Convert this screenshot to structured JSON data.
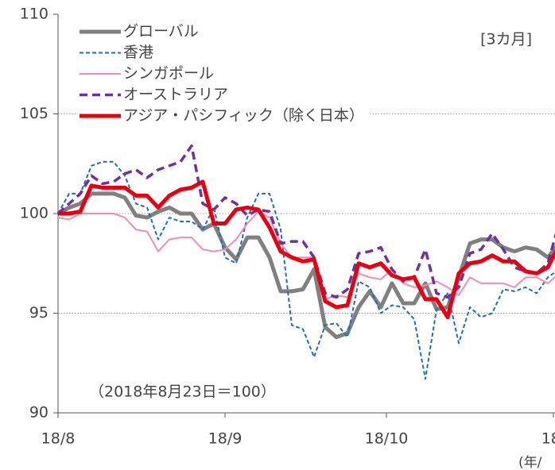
{
  "chart_data": {
    "type": "line",
    "annotations": [
      "[3カ月]",
      "（2018年8月23日＝100）",
      "(年/"
    ],
    "x": [
      0,
      2,
      4,
      6,
      8,
      10,
      12,
      14,
      16,
      18,
      20,
      22,
      24,
      26,
      28,
      30,
      32,
      34,
      36,
      38,
      40,
      42,
      44,
      46,
      48,
      50,
      52,
      54,
      56,
      58,
      60,
      62,
      64,
      66,
      68,
      70,
      72,
      74,
      76,
      78,
      80,
      82,
      84,
      86,
      88,
      90
    ],
    "xlim": [
      0,
      90
    ],
    "xticks": [
      {
        "value": 0,
        "label": "18/8"
      },
      {
        "value": 30,
        "label": "18/9"
      },
      {
        "value": 59,
        "label": "18/10"
      },
      {
        "value": 89,
        "label": "18/"
      }
    ],
    "ylim": [
      90,
      110
    ],
    "yticks": [
      90,
      95,
      100,
      105,
      110
    ],
    "grid": true,
    "legend": "top-left",
    "series": [
      {
        "name": "グローバル",
        "color": "#808080",
        "style": "solid",
        "weight": "heavy",
        "values": [
          100,
          100.3,
          100.5,
          101,
          101,
          101,
          100.8,
          99.9,
          99.8,
          100.1,
          100.3,
          100,
          100,
          99.2,
          99.5,
          98.3,
          97.7,
          98.8,
          98.8,
          97.8,
          96.1,
          96.1,
          96.2,
          97.2,
          94.3,
          93.8,
          94,
          95.3,
          96.1,
          95.3,
          96.5,
          95.5,
          95.5,
          96.5,
          95.2,
          95.3,
          96.8,
          98.5,
          98.7,
          98.7,
          98.3,
          98.1,
          98.3,
          98.2,
          97.8,
          98.5
        ]
      },
      {
        "name": "香港",
        "color": "#1f6fb8",
        "style": "dashed",
        "weight": "light",
        "values": [
          100,
          101,
          101,
          102.4,
          102.6,
          102.6,
          101.9,
          100.5,
          100.3,
          98.7,
          99.8,
          99.6,
          99.6,
          99.2,
          100.3,
          97.8,
          97.5,
          99.8,
          101,
          101,
          99.2,
          94.4,
          94.2,
          92.8,
          94.4,
          94.5,
          93.8,
          96.6,
          96.3,
          95,
          95.4,
          95.3,
          94.7,
          91.7,
          95.2,
          96,
          93.5,
          95.3,
          94.8,
          95,
          96.2,
          96.1,
          96.3,
          96,
          96.8,
          97.2
        ]
      },
      {
        "name": "シンガポール",
        "color": "#f08cb8",
        "style": "solid",
        "weight": "light",
        "values": [
          99.8,
          99.7,
          100,
          100,
          100,
          100,
          99.8,
          99.2,
          99.1,
          98.1,
          98.7,
          98.8,
          98.8,
          98.2,
          98.1,
          98.2,
          98.7,
          99.5,
          100.1,
          99.8,
          98.5,
          97.8,
          97.8,
          97.8,
          95.7,
          95.9,
          95.8,
          97,
          96.8,
          96.7,
          97.2,
          96.5,
          96.3,
          96.4,
          96.6,
          96.3,
          95.9,
          96.8,
          96.5,
          96.5,
          96.5,
          96.3,
          96.8,
          96.8,
          96.5,
          97
        ]
      },
      {
        "name": "オーストラリア",
        "color": "#7030a0",
        "style": "dashed",
        "weight": "heavy",
        "values": [
          100,
          100.5,
          101,
          101.9,
          101.5,
          101.6,
          102,
          102.2,
          101.8,
          102.2,
          102.4,
          102.6,
          103.4,
          100.5,
          100.2,
          100.8,
          100.5,
          99.9,
          100.2,
          100.1,
          98.5,
          98.6,
          98.6,
          97.8,
          96,
          95.8,
          96.2,
          98,
          98.1,
          98.3,
          97.2,
          96.6,
          96.8,
          98.2,
          96,
          95.8,
          96.3,
          98,
          98.2,
          99,
          98.2,
          97.3,
          97.1,
          97,
          97.5,
          99.5
        ]
      },
      {
        "name": "アジア・パシフィック（除く日本）",
        "color": "#e60012",
        "style": "solid",
        "weight": "heavy",
        "values": [
          100,
          100,
          100.1,
          101.4,
          101.3,
          101.3,
          101.3,
          100.9,
          100.9,
          100.3,
          100.9,
          101.2,
          101.3,
          101.6,
          99.5,
          99.5,
          100.2,
          100.3,
          100.2,
          99.3,
          98.1,
          97.8,
          97.6,
          97.7,
          95.6,
          95.3,
          95.4,
          97.5,
          97.3,
          97.5,
          96.9,
          96.7,
          96.8,
          95.7,
          95.7,
          94.8,
          97,
          97.5,
          97.6,
          97.9,
          97.6,
          97.6,
          97.1,
          97,
          97.3,
          98.4
        ]
      }
    ]
  }
}
